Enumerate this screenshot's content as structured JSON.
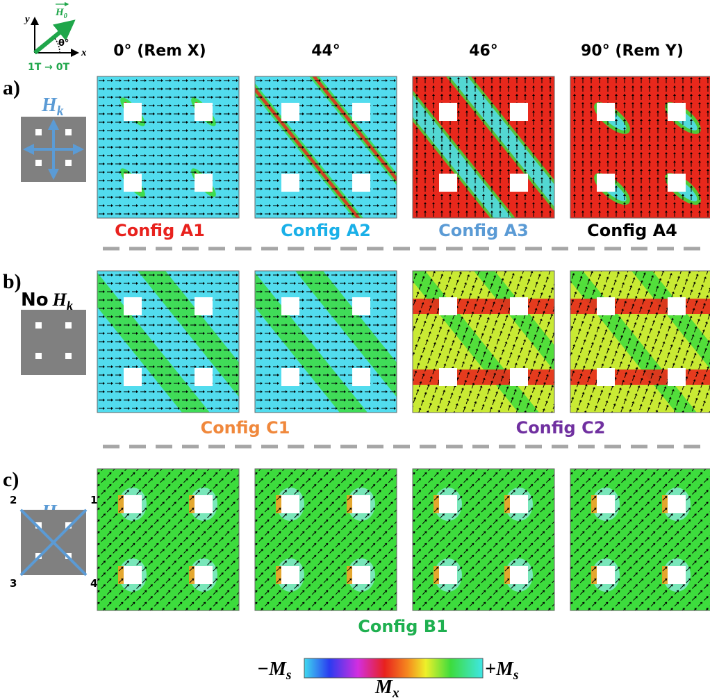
{
  "inset": {
    "y_axis": "y",
    "x_axis": "x",
    "field": {
      "symbol": "H",
      "subscript": "0"
    },
    "angle": "θ°",
    "sweep": "1T → 0T"
  },
  "columns": [
    "0° (Rem X)",
    "44°",
    "46°",
    "90° (Rem Y)"
  ],
  "rows": [
    {
      "label": "a)",
      "anisotropy": {
        "symbol": "H",
        "subscript": "k"
      },
      "configs": [
        "Config A1",
        "Config A2",
        "Config A3",
        "Config A4"
      ]
    },
    {
      "label": "b)",
      "prefix": "No",
      "anisotropy": {
        "symbol": "H",
        "subscript": "k"
      },
      "configs": [
        "Config C1",
        "Config C2"
      ]
    },
    {
      "label": "c)",
      "anisotropy": {
        "symbol": "H",
        "subscript": "k"
      },
      "corners": [
        "2",
        "1",
        "3",
        "4"
      ],
      "configs": [
        "Config B1"
      ]
    }
  ],
  "colorbar": {
    "min": {
      "sign": "−",
      "symbol": "M",
      "subscript": "s"
    },
    "max": {
      "sign": "+",
      "symbol": "M",
      "subscript": "s"
    },
    "axis": {
      "symbol": "M",
      "subscript": "x"
    }
  }
}
